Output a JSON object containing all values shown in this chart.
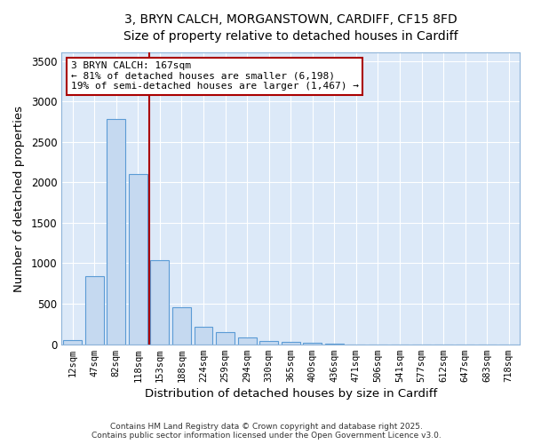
{
  "title_line1": "3, BRYN CALCH, MORGANSTOWN, CARDIFF, CF15 8FD",
  "title_line2": "Size of property relative to detached houses in Cardiff",
  "xlabel": "Distribution of detached houses by size in Cardiff",
  "ylabel": "Number of detached properties",
  "categories": [
    "12sqm",
    "47sqm",
    "82sqm",
    "118sqm",
    "153sqm",
    "188sqm",
    "224sqm",
    "259sqm",
    "294sqm",
    "330sqm",
    "365sqm",
    "400sqm",
    "436sqm",
    "471sqm",
    "506sqm",
    "541sqm",
    "577sqm",
    "612sqm",
    "647sqm",
    "683sqm",
    "718sqm"
  ],
  "values": [
    55,
    840,
    2780,
    2100,
    1040,
    460,
    215,
    145,
    80,
    45,
    25,
    15,
    3,
    1,
    0,
    0,
    0,
    0,
    0,
    0,
    0
  ],
  "bar_color": "#c5d9f0",
  "bar_edge_color": "#5b9bd5",
  "background_color": "#ffffff",
  "plot_bg_color": "#dce9f8",
  "grid_color": "#ffffff",
  "red_line_index": 4,
  "ylim": [
    0,
    3600
  ],
  "yticks": [
    0,
    500,
    1000,
    1500,
    2000,
    2500,
    3000,
    3500
  ],
  "annotation_title": "3 BRYN CALCH: 167sqm",
  "annotation_line2": "← 81% of detached houses are smaller (6,198)",
  "annotation_line3": "19% of semi-detached houses are larger (1,467) →",
  "annotation_box_color": "#ffffff",
  "annotation_box_edge": "#aa0000",
  "footer_line1": "Contains HM Land Registry data © Crown copyright and database right 2025.",
  "footer_line2": "Contains public sector information licensed under the Open Government Licence v3.0."
}
